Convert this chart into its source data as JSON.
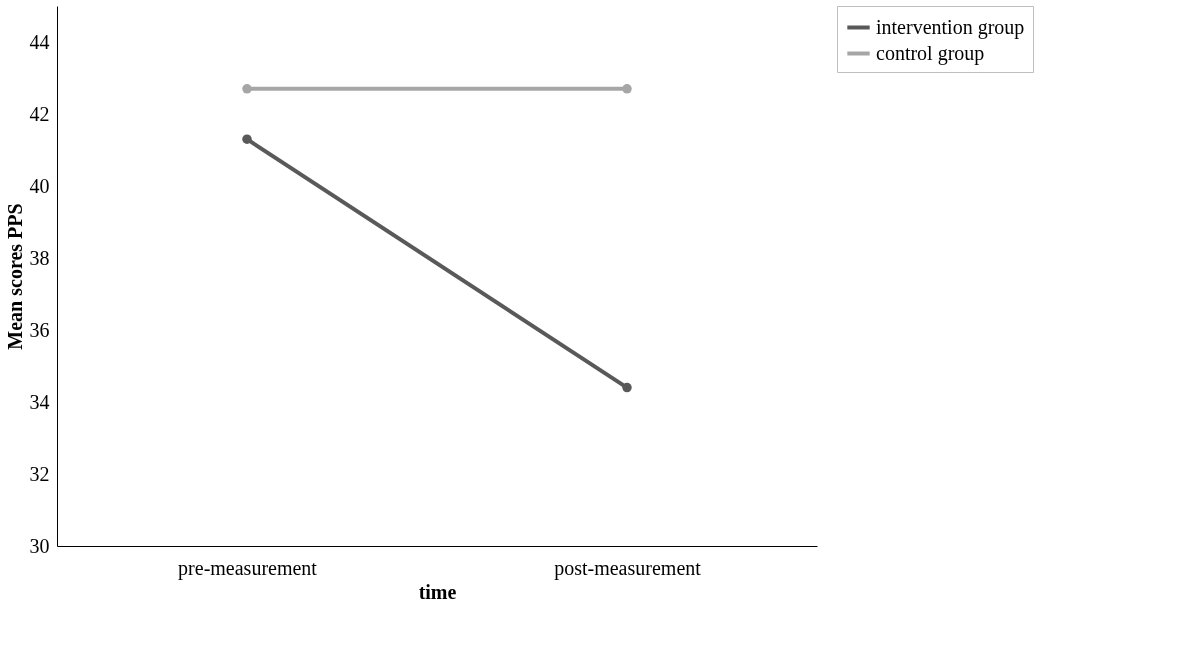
{
  "chart_data": {
    "type": "line",
    "xlabel": "time",
    "ylabel": "Mean scores PPS",
    "categories": [
      "pre-measurement",
      "post-measurement"
    ],
    "series": [
      {
        "name": "intervention group",
        "color": "#595959",
        "values": [
          41.3,
          34.4
        ]
      },
      {
        "name": "control group",
        "color": "#a6a6a6",
        "values": [
          42.7,
          42.7
        ]
      }
    ],
    "ylim": [
      30,
      45
    ],
    "yticks": [
      30,
      32,
      34,
      36,
      38,
      40,
      42,
      44
    ],
    "grid": false,
    "legend": "right",
    "marker": "circle",
    "line_style": "solid"
  }
}
